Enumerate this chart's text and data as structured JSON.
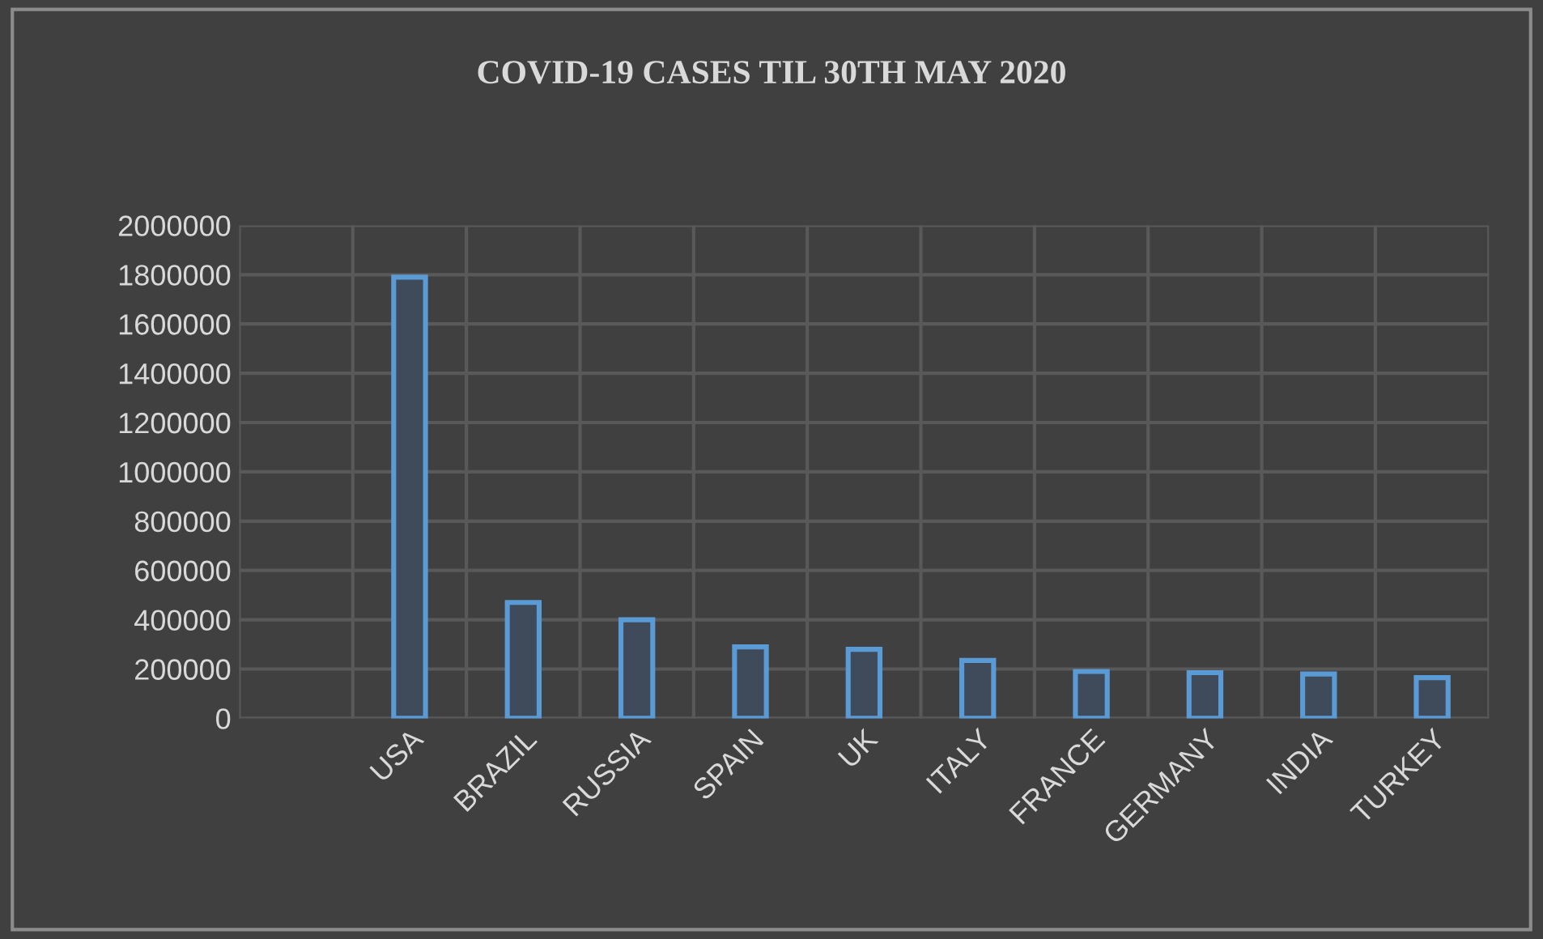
{
  "chart_data": {
    "type": "bar",
    "title": "COVID-19 CASES TIL 30TH MAY 2020",
    "categories": [
      null,
      "USA",
      "BRAZIL",
      "RUSSIA",
      "SPAIN",
      "UK",
      "ITALY",
      "FRANCE",
      "GERMANY",
      "INDIA",
      "TURKEY"
    ],
    "values": [
      null,
      1790000,
      470000,
      400000,
      290000,
      280000,
      235000,
      190000,
      185000,
      180000,
      165000
    ],
    "color": "#5b9bd5",
    "ylim": [
      0,
      2000000
    ],
    "yticks": [
      0,
      200000,
      400000,
      600000,
      800000,
      1000000,
      1200000,
      1400000,
      1600000,
      1800000,
      2000000
    ],
    "grid": true
  }
}
